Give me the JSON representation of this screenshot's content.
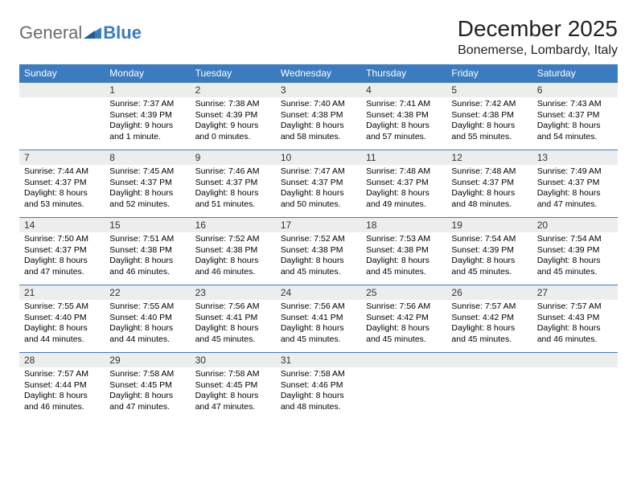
{
  "logo": {
    "text1": "General",
    "text2": "Blue"
  },
  "title": "December 2025",
  "location": "Bonemerse, Lombardy, Italy",
  "colors": {
    "header_bg": "#3b7bbf",
    "header_text": "#ffffff",
    "daynum_bg": "#eceded",
    "border": "#3b7bbf",
    "logo_gray": "#6b6b6b",
    "logo_blue": "#3b7bbf"
  },
  "daysOfWeek": [
    "Sunday",
    "Monday",
    "Tuesday",
    "Wednesday",
    "Thursday",
    "Friday",
    "Saturday"
  ],
  "weeks": [
    [
      {
        "num": "",
        "lines": []
      },
      {
        "num": "1",
        "lines": [
          "Sunrise: 7:37 AM",
          "Sunset: 4:39 PM",
          "Daylight: 9 hours and 1 minute."
        ]
      },
      {
        "num": "2",
        "lines": [
          "Sunrise: 7:38 AM",
          "Sunset: 4:39 PM",
          "Daylight: 9 hours and 0 minutes."
        ]
      },
      {
        "num": "3",
        "lines": [
          "Sunrise: 7:40 AM",
          "Sunset: 4:38 PM",
          "Daylight: 8 hours and 58 minutes."
        ]
      },
      {
        "num": "4",
        "lines": [
          "Sunrise: 7:41 AM",
          "Sunset: 4:38 PM",
          "Daylight: 8 hours and 57 minutes."
        ]
      },
      {
        "num": "5",
        "lines": [
          "Sunrise: 7:42 AM",
          "Sunset: 4:38 PM",
          "Daylight: 8 hours and 55 minutes."
        ]
      },
      {
        "num": "6",
        "lines": [
          "Sunrise: 7:43 AM",
          "Sunset: 4:37 PM",
          "Daylight: 8 hours and 54 minutes."
        ]
      }
    ],
    [
      {
        "num": "7",
        "lines": [
          "Sunrise: 7:44 AM",
          "Sunset: 4:37 PM",
          "Daylight: 8 hours and 53 minutes."
        ]
      },
      {
        "num": "8",
        "lines": [
          "Sunrise: 7:45 AM",
          "Sunset: 4:37 PM",
          "Daylight: 8 hours and 52 minutes."
        ]
      },
      {
        "num": "9",
        "lines": [
          "Sunrise: 7:46 AM",
          "Sunset: 4:37 PM",
          "Daylight: 8 hours and 51 minutes."
        ]
      },
      {
        "num": "10",
        "lines": [
          "Sunrise: 7:47 AM",
          "Sunset: 4:37 PM",
          "Daylight: 8 hours and 50 minutes."
        ]
      },
      {
        "num": "11",
        "lines": [
          "Sunrise: 7:48 AM",
          "Sunset: 4:37 PM",
          "Daylight: 8 hours and 49 minutes."
        ]
      },
      {
        "num": "12",
        "lines": [
          "Sunrise: 7:48 AM",
          "Sunset: 4:37 PM",
          "Daylight: 8 hours and 48 minutes."
        ]
      },
      {
        "num": "13",
        "lines": [
          "Sunrise: 7:49 AM",
          "Sunset: 4:37 PM",
          "Daylight: 8 hours and 47 minutes."
        ]
      }
    ],
    [
      {
        "num": "14",
        "lines": [
          "Sunrise: 7:50 AM",
          "Sunset: 4:37 PM",
          "Daylight: 8 hours and 47 minutes."
        ]
      },
      {
        "num": "15",
        "lines": [
          "Sunrise: 7:51 AM",
          "Sunset: 4:38 PM",
          "Daylight: 8 hours and 46 minutes."
        ]
      },
      {
        "num": "16",
        "lines": [
          "Sunrise: 7:52 AM",
          "Sunset: 4:38 PM",
          "Daylight: 8 hours and 46 minutes."
        ]
      },
      {
        "num": "17",
        "lines": [
          "Sunrise: 7:52 AM",
          "Sunset: 4:38 PM",
          "Daylight: 8 hours and 45 minutes."
        ]
      },
      {
        "num": "18",
        "lines": [
          "Sunrise: 7:53 AM",
          "Sunset: 4:38 PM",
          "Daylight: 8 hours and 45 minutes."
        ]
      },
      {
        "num": "19",
        "lines": [
          "Sunrise: 7:54 AM",
          "Sunset: 4:39 PM",
          "Daylight: 8 hours and 45 minutes."
        ]
      },
      {
        "num": "20",
        "lines": [
          "Sunrise: 7:54 AM",
          "Sunset: 4:39 PM",
          "Daylight: 8 hours and 45 minutes."
        ]
      }
    ],
    [
      {
        "num": "21",
        "lines": [
          "Sunrise: 7:55 AM",
          "Sunset: 4:40 PM",
          "Daylight: 8 hours and 44 minutes."
        ]
      },
      {
        "num": "22",
        "lines": [
          "Sunrise: 7:55 AM",
          "Sunset: 4:40 PM",
          "Daylight: 8 hours and 44 minutes."
        ]
      },
      {
        "num": "23",
        "lines": [
          "Sunrise: 7:56 AM",
          "Sunset: 4:41 PM",
          "Daylight: 8 hours and 45 minutes."
        ]
      },
      {
        "num": "24",
        "lines": [
          "Sunrise: 7:56 AM",
          "Sunset: 4:41 PM",
          "Daylight: 8 hours and 45 minutes."
        ]
      },
      {
        "num": "25",
        "lines": [
          "Sunrise: 7:56 AM",
          "Sunset: 4:42 PM",
          "Daylight: 8 hours and 45 minutes."
        ]
      },
      {
        "num": "26",
        "lines": [
          "Sunrise: 7:57 AM",
          "Sunset: 4:42 PM",
          "Daylight: 8 hours and 45 minutes."
        ]
      },
      {
        "num": "27",
        "lines": [
          "Sunrise: 7:57 AM",
          "Sunset: 4:43 PM",
          "Daylight: 8 hours and 46 minutes."
        ]
      }
    ],
    [
      {
        "num": "28",
        "lines": [
          "Sunrise: 7:57 AM",
          "Sunset: 4:44 PM",
          "Daylight: 8 hours and 46 minutes."
        ]
      },
      {
        "num": "29",
        "lines": [
          "Sunrise: 7:58 AM",
          "Sunset: 4:45 PM",
          "Daylight: 8 hours and 47 minutes."
        ]
      },
      {
        "num": "30",
        "lines": [
          "Sunrise: 7:58 AM",
          "Sunset: 4:45 PM",
          "Daylight: 8 hours and 47 minutes."
        ]
      },
      {
        "num": "31",
        "lines": [
          "Sunrise: 7:58 AM",
          "Sunset: 4:46 PM",
          "Daylight: 8 hours and 48 minutes."
        ]
      },
      {
        "num": "",
        "lines": []
      },
      {
        "num": "",
        "lines": []
      },
      {
        "num": "",
        "lines": []
      }
    ]
  ]
}
